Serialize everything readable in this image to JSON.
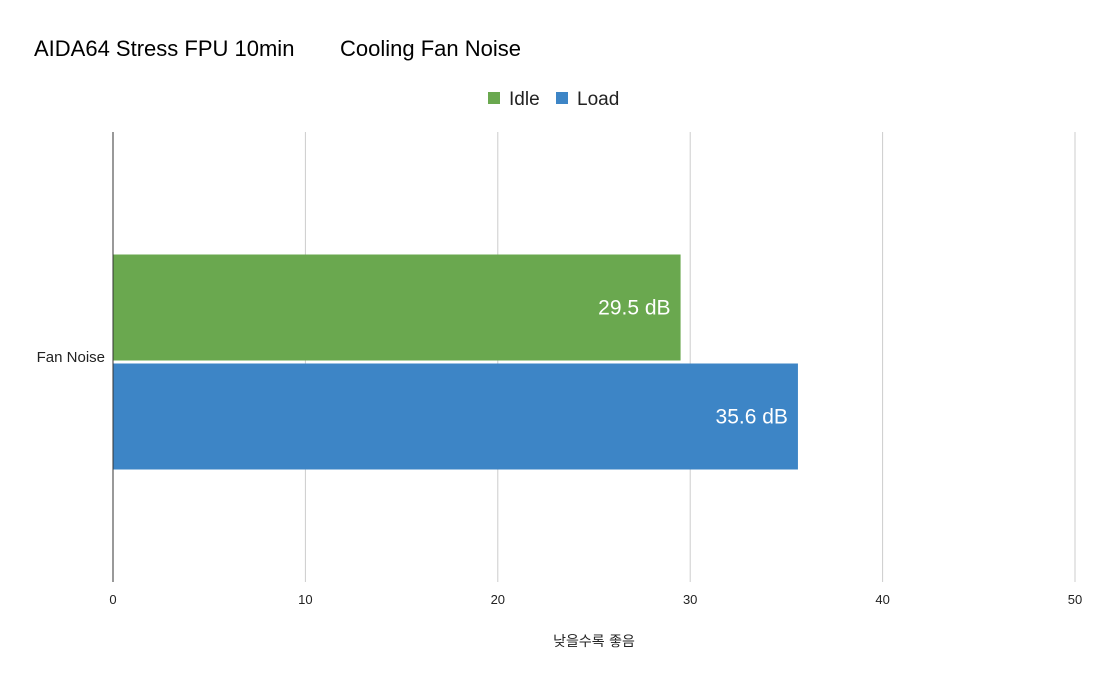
{
  "chart_data": {
    "type": "bar",
    "orientation": "horizontal",
    "title": "AIDA64 Stress FPU 10min",
    "subtitle": "Cooling Fan Noise",
    "categories": [
      "Fan Noise"
    ],
    "series": [
      {
        "name": "Idle",
        "values": [
          29.5
        ],
        "labels": [
          "29.5 dB"
        ],
        "color": "#6aa84f"
      },
      {
        "name": "Load",
        "values": [
          35.6
        ],
        "labels": [
          "35.6 dB"
        ],
        "color": "#3d85c6"
      }
    ],
    "xlabel": "낮을수록 좋음",
    "ylabel": "",
    "xlim": [
      0,
      50
    ],
    "xticks": [
      "0",
      "10",
      "20",
      "30",
      "40",
      "50"
    ],
    "grid": true,
    "legend_position": "top-center"
  }
}
